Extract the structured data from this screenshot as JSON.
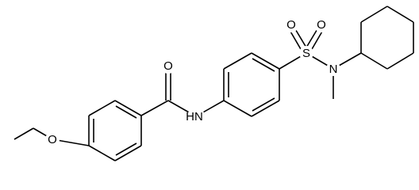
{
  "atoms": [
    {
      "label": "O"
    },
    {
      "label": "HN"
    },
    {
      "label": "O"
    },
    {
      "label": "S"
    },
    {
      "label": "O"
    },
    {
      "label": "O"
    },
    {
      "label": "N"
    }
  ]
}
